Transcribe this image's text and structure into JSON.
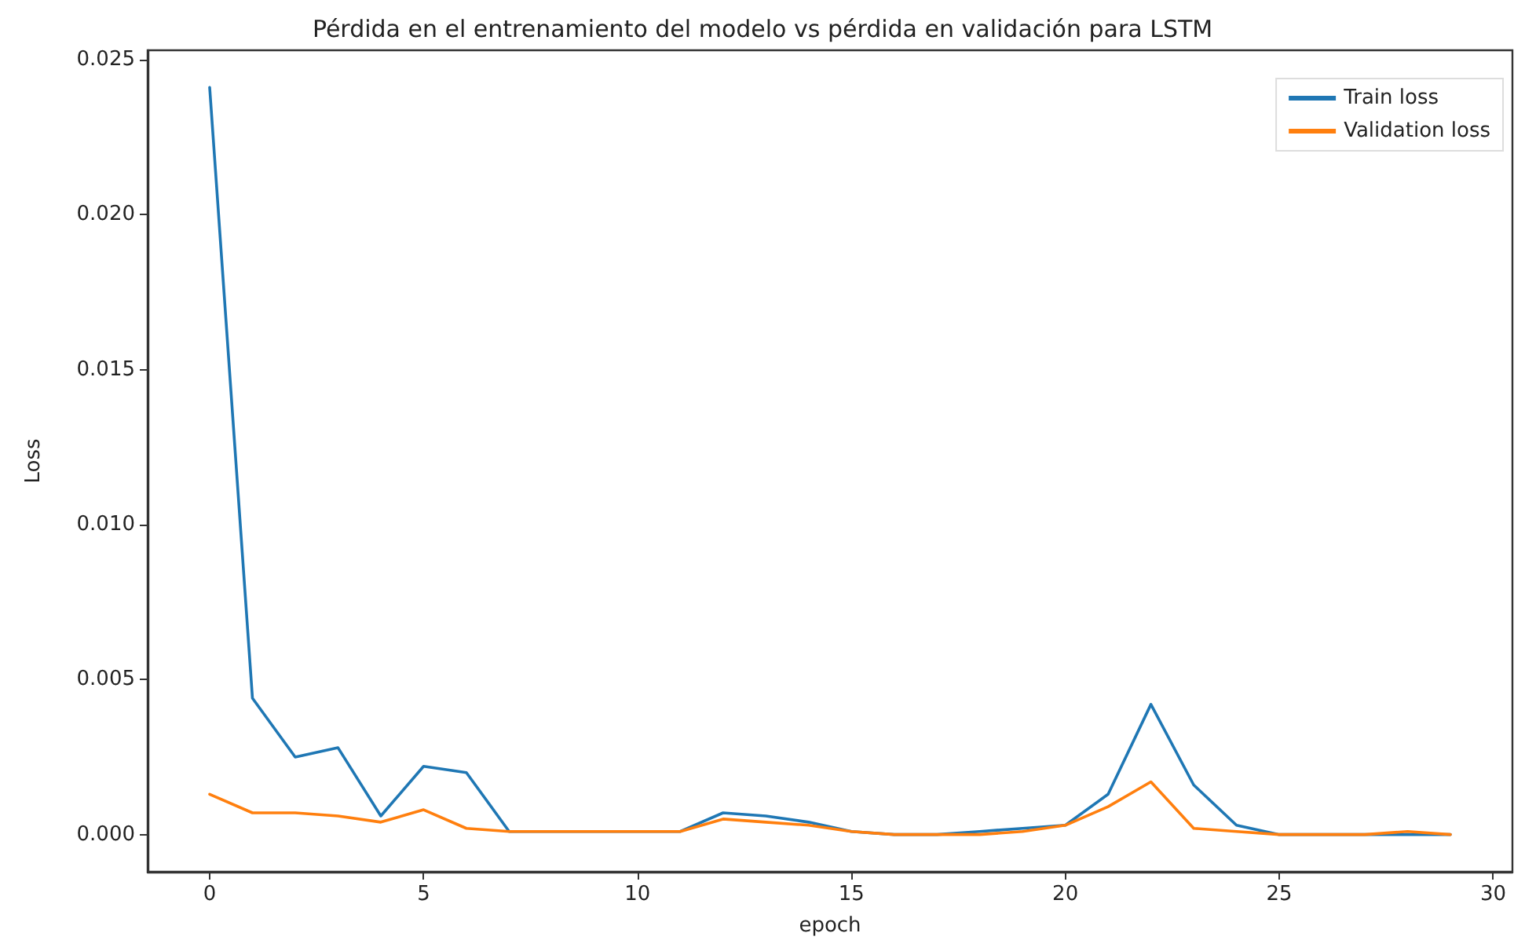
{
  "chart_data": {
    "type": "line",
    "title": "Pérdida en el entrenamiento del modelo vs pérdida en validación para LSTM",
    "xlabel": "epoch",
    "ylabel": "Loss",
    "x": [
      0,
      1,
      2,
      3,
      4,
      5,
      6,
      7,
      8,
      9,
      10,
      11,
      12,
      13,
      14,
      15,
      16,
      17,
      18,
      19,
      20,
      21,
      22,
      23,
      24,
      25,
      26,
      27,
      28,
      29
    ],
    "series": [
      {
        "name": "Train loss",
        "color": "#1f77b4",
        "values": [
          0.0241,
          0.0044,
          0.0025,
          0.0028,
          0.0006,
          0.0022,
          0.002,
          0.0001,
          0.0001,
          0.0001,
          0.0001,
          0.0001,
          0.0007,
          0.0006,
          0.0004,
          0.0001,
          0.0,
          0.0,
          0.0001,
          0.0002,
          0.0003,
          0.0013,
          0.0042,
          0.0016,
          0.0003,
          0.0,
          0.0,
          0.0,
          0.0,
          0.0
        ]
      },
      {
        "name": "Validation loss",
        "color": "#ff7f0e",
        "values": [
          0.0013,
          0.0007,
          0.0007,
          0.0006,
          0.0004,
          0.0008,
          0.0002,
          0.0001,
          0.0001,
          0.0001,
          0.0001,
          0.0001,
          0.0005,
          0.0004,
          0.0003,
          0.0001,
          0.0,
          0.0,
          0.0,
          0.0001,
          0.0003,
          0.0009,
          0.0017,
          0.0002,
          0.0001,
          0.0,
          0.0,
          0.0,
          0.0001,
          0.0
        ]
      }
    ],
    "xlim": [
      -1.45,
      30.45
    ],
    "xticks": [
      0,
      5,
      10,
      15,
      20,
      25,
      30
    ],
    "ylim": [
      -0.0012,
      0.0253
    ],
    "yticks": [
      {
        "value": 0,
        "label": "0.000"
      },
      {
        "value": 0.005,
        "label": "0.005"
      },
      {
        "value": 0.01,
        "label": "0.010"
      },
      {
        "value": 0.015,
        "label": "0.015"
      },
      {
        "value": 0.02,
        "label": "0.020"
      },
      {
        "value": 0.025,
        "label": "0.025"
      }
    ],
    "legend": "top right",
    "grid": false,
    "marker": "none",
    "line_style": "solid"
  }
}
